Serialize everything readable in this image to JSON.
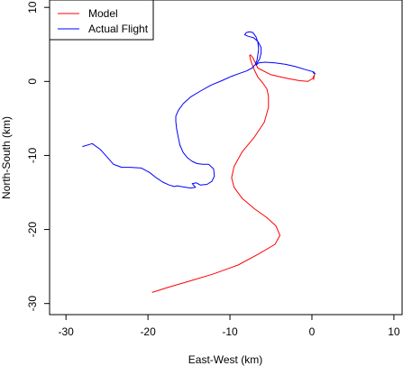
{
  "chart_data": {
    "type": "line",
    "xlabel": "East-West (km)",
    "ylabel": "North-South (km)",
    "xlim": [
      -32,
      11
    ],
    "ylim": [
      -31.5,
      11
    ],
    "xticks": [
      -30,
      -20,
      -10,
      0,
      10
    ],
    "yticks": [
      -30,
      -20,
      -10,
      0,
      10
    ],
    "grid": false,
    "legend_position": "top-left",
    "series": [
      {
        "name": "Model",
        "color": "#ff0000",
        "x": [
          -19.5,
          -17.5,
          -15.0,
          -12.0,
          -9.0,
          -6.5,
          -4.5,
          -3.9,
          -4.4,
          -5.5,
          -7.0,
          -8.5,
          -9.5,
          -9.8,
          -9.5,
          -8.5,
          -7.0,
          -5.8,
          -5.3,
          -5.3,
          -5.5,
          -6.0,
          -6.6,
          -7.0,
          -7.3,
          -7.5,
          -7.6,
          -7.5,
          -7.2,
          -6.6,
          -5.0,
          -3.0,
          -1.5,
          -0.5,
          0.1,
          0.3,
          0.2
        ],
        "y": [
          -28.5,
          -27.8,
          -27.0,
          -26.0,
          -24.8,
          -23.3,
          -22.0,
          -20.8,
          -19.5,
          -18.4,
          -17.2,
          -15.8,
          -14.3,
          -13.0,
          -11.5,
          -9.5,
          -7.5,
          -5.5,
          -3.5,
          -2.0,
          -1.0,
          -0.2,
          0.6,
          1.5,
          2.3,
          3.0,
          3.5,
          3.6,
          3.2,
          1.8,
          0.9,
          0.4,
          0.1,
          0.0,
          0.4,
          0.9,
          0.2
        ]
      },
      {
        "name": "Actual Flight",
        "color": "#0000ff",
        "x": [
          -28.0,
          -26.8,
          -25.8,
          -25.0,
          -24.2,
          -23.2,
          -22.2,
          -20.8,
          -19.8,
          -19.0,
          -18.2,
          -17.4,
          -16.8,
          -16.4,
          -16.0,
          -15.4,
          -14.8,
          -14.2,
          -14.6,
          -14.1,
          -13.6,
          -12.8,
          -12.2,
          -11.9,
          -12.0,
          -12.6,
          -13.3,
          -14.0,
          -14.6,
          -15.2,
          -15.7,
          -16.1,
          -16.3,
          -16.5,
          -16.6,
          -16.6,
          -16.3,
          -15.7,
          -14.8,
          -13.6,
          -12.3,
          -11.0,
          -9.8,
          -8.8,
          -8.0,
          -7.3,
          -6.9,
          -6.7,
          -6.6,
          -6.5,
          -6.6,
          -6.8,
          -7.2,
          -7.6,
          -8.0,
          -8.2,
          -7.8,
          -7.1,
          -6.6,
          -6.2,
          -6.2,
          -6.4,
          -6.7,
          -6.8,
          -6.5,
          -5.7,
          -4.5,
          -3.2,
          -2.0,
          -0.8,
          0.2,
          0.4,
          0.1
        ],
        "y": [
          -8.8,
          -8.4,
          -9.2,
          -10.2,
          -11.2,
          -11.6,
          -11.6,
          -11.7,
          -12.3,
          -13.0,
          -13.6,
          -14.0,
          -14.2,
          -14.1,
          -14.2,
          -14.3,
          -14.4,
          -14.3,
          -13.8,
          -13.7,
          -14.0,
          -13.9,
          -13.5,
          -12.8,
          -11.8,
          -11.2,
          -11.2,
          -11.1,
          -10.8,
          -10.3,
          -9.6,
          -8.6,
          -7.6,
          -6.4,
          -5.4,
          -4.7,
          -3.9,
          -3.0,
          -2.1,
          -1.3,
          -0.5,
          0.1,
          0.7,
          1.1,
          1.4,
          1.8,
          2.3,
          2.9,
          3.6,
          4.4,
          5.3,
          6.0,
          6.6,
          6.7,
          6.6,
          6.3,
          6.1,
          5.9,
          5.4,
          4.6,
          3.8,
          3.0,
          2.5,
          2.2,
          2.5,
          2.6,
          2.5,
          2.3,
          2.0,
          1.6,
          1.3,
          1.0,
          1.2
        ]
      }
    ]
  }
}
